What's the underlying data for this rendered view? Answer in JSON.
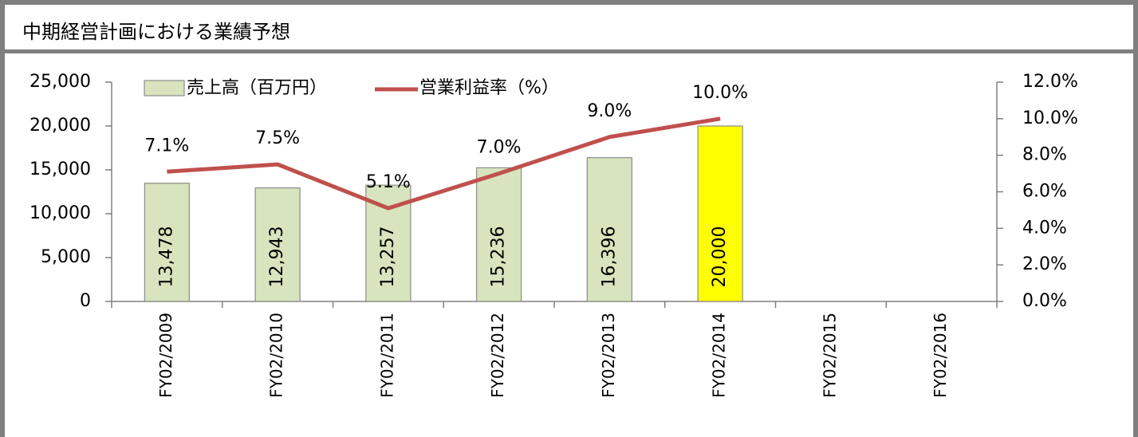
{
  "chart_data": {
    "type": "bar_line",
    "title": "中期経営計画における業績予想",
    "categories": [
      "FY02/2009",
      "FY02/2010",
      "FY02/2011",
      "FY02/2012",
      "FY02/2013",
      "FY02/2014",
      "FY02/2015",
      "FY02/2016"
    ],
    "series": [
      {
        "name": "売上高（百万円）",
        "type": "bar",
        "color": "#d7e4bd",
        "colors": [
          "#d7e4bd",
          "#d7e4bd",
          "#d7e4bd",
          "#d7e4bd",
          "#d7e4bd",
          "#ffff00",
          "#d7e4bd",
          "#d7e4bd"
        ],
        "values": [
          13478,
          12943,
          13257,
          15236,
          16396,
          20000,
          null,
          null
        ],
        "value_labels": [
          "13,478",
          "12,943",
          "13,257",
          "15,236",
          "16,396",
          "20,000",
          null,
          null
        ]
      },
      {
        "name": "営業利益率（%）",
        "type": "line",
        "axis": "y2",
        "color": "#c0504d",
        "values": [
          7.1,
          7.5,
          5.1,
          7.0,
          9.0,
          10.0,
          null,
          null
        ],
        "value_labels": [
          "7.1%",
          "7.5%",
          "5.1%",
          "7.0%",
          "9.0%",
          "10.0%",
          null,
          null
        ]
      }
    ],
    "ylim": [
      0,
      25000
    ],
    "yticks": [
      0,
      {
        "value": 5000,
        "label": "5,000"
      },
      {
        "value": 10000,
        "label": "10,000"
      },
      {
        "value": 15000,
        "label": "15,000"
      },
      {
        "value": 20000,
        "label": "20,000"
      },
      {
        "value": 25000,
        "label": "25,000"
      }
    ],
    "y2lim": [
      0,
      12
    ],
    "y2ticks": [
      {
        "value": 0,
        "label": "0.0%"
      },
      {
        "value": 2,
        "label": "2.0%"
      },
      {
        "value": 4,
        "label": "4.0%"
      },
      {
        "value": 6,
        "label": "6.0%"
      },
      {
        "value": 8,
        "label": "8.0%"
      },
      {
        "value": 10,
        "label": "10.0%"
      },
      {
        "value": 12,
        "label": "12.0%"
      }
    ],
    "grid": false,
    "legend": "top"
  }
}
